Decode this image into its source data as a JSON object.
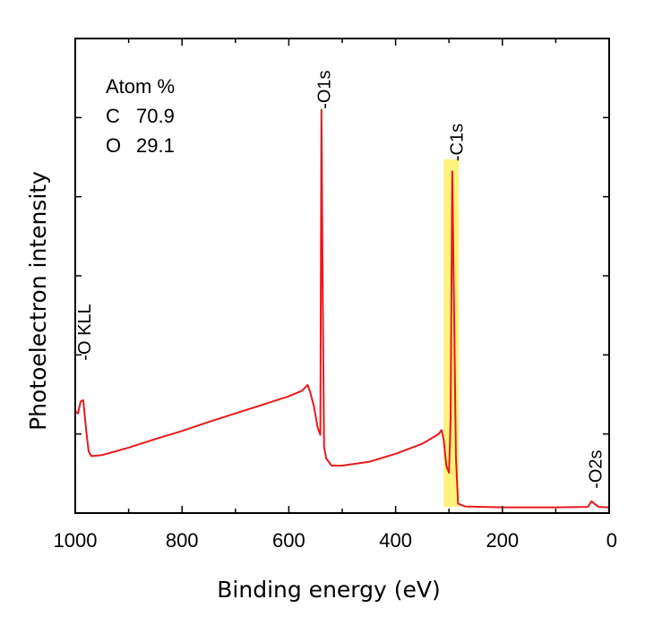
{
  "chart_data": {
    "type": "line",
    "xlabel": "Binding energy (eV)",
    "ylabel": "Photoelectron intensity",
    "xlim": [
      1000,
      0
    ],
    "x_reversed": true,
    "x_ticks": [
      1000,
      800,
      600,
      400,
      200,
      0
    ],
    "y_ticks_labeled": false,
    "ylim": [
      0,
      100
    ],
    "grid": false,
    "legend": {
      "title": "Atom %",
      "placement": "top-left",
      "entries": [
        {
          "element": "C",
          "value": "70.9"
        },
        {
          "element": "O",
          "value": "29.1"
        }
      ]
    },
    "highlight": {
      "x_from": 310,
      "x_to": 282,
      "color": "#fff27a"
    },
    "annotations": [
      {
        "text": "-O KLL",
        "x": 985,
        "y": 31
      },
      {
        "text": "-O1s",
        "x": 536,
        "y": 84
      },
      {
        "text": "-C1s",
        "x": 288,
        "y": 73
      },
      {
        "text": "-O2s",
        "x": 28,
        "y": 4
      }
    ],
    "series": [
      {
        "color": "#e8191e",
        "points": [
          [
            1000,
            21.5
          ],
          [
            995,
            21.0
          ],
          [
            990,
            23.5
          ],
          [
            985,
            23.8
          ],
          [
            980,
            18.0
          ],
          [
            975,
            13.0
          ],
          [
            970,
            12.0
          ],
          [
            950,
            12.2
          ],
          [
            900,
            13.8
          ],
          [
            850,
            15.6
          ],
          [
            800,
            17.3
          ],
          [
            750,
            19.2
          ],
          [
            700,
            21.0
          ],
          [
            650,
            22.8
          ],
          [
            600,
            24.6
          ],
          [
            575,
            25.8
          ],
          [
            565,
            27.0
          ],
          [
            560,
            25.5
          ],
          [
            553,
            22.5
          ],
          [
            546,
            18.0
          ],
          [
            541,
            16.5
          ],
          [
            539,
            85.0
          ],
          [
            537,
            55.0
          ],
          [
            534,
            14.0
          ],
          [
            530,
            11.5
          ],
          [
            520,
            10.0
          ],
          [
            500,
            10.0
          ],
          [
            450,
            10.8
          ],
          [
            400,
            12.5
          ],
          [
            350,
            14.6
          ],
          [
            320,
            16.6
          ],
          [
            314,
            17.5
          ],
          [
            310,
            15.5
          ],
          [
            305,
            10.0
          ],
          [
            300,
            8.5
          ],
          [
            297,
            20.0
          ],
          [
            294,
            72.0
          ],
          [
            290,
            38.0
          ],
          [
            287,
            12.0
          ],
          [
            283,
            2.0
          ],
          [
            270,
            1.4
          ],
          [
            200,
            1.2
          ],
          [
            100,
            1.2
          ],
          [
            40,
            1.3
          ],
          [
            33,
            2.5
          ],
          [
            28,
            2.0
          ],
          [
            20,
            1.3
          ],
          [
            0,
            1.2
          ]
        ]
      }
    ]
  }
}
